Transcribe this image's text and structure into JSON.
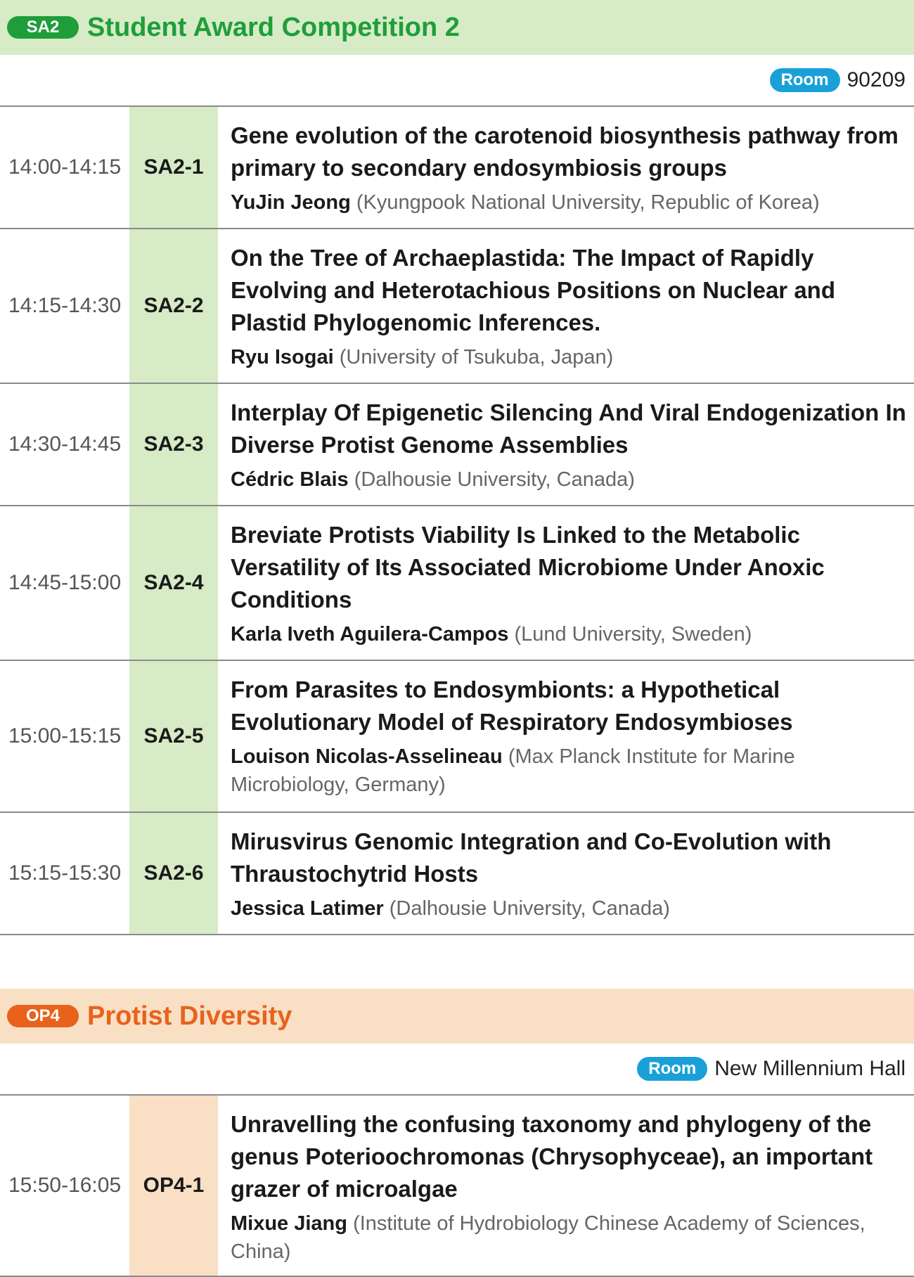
{
  "sessions": [
    {
      "badge": "SA2",
      "title": "Student Award Competition 2",
      "room_label": "Room",
      "room": "90209",
      "talks": [
        {
          "time": "14:00-14:15",
          "code": "SA2-1",
          "title": "Gene evolution of the carotenoid biosynthesis pathway from primary to secondary endosymbiosis groups",
          "author": "YuJin Jeong",
          "affiliation": "(Kyungpook National University, Republic of Korea)"
        },
        {
          "time": "14:15-14:30",
          "code": "SA2-2",
          "title": "On the Tree of Archaeplastida: The Impact of Rapidly Evolving and Heterotachious Positions on Nuclear and Plastid Phylogenomic Inferences.",
          "author": "Ryu Isogai",
          "affiliation": "(University of Tsukuba, Japan)"
        },
        {
          "time": "14:30-14:45",
          "code": "SA2-3",
          "title": "Interplay Of Epigenetic Silencing And Viral Endogenization In Diverse Protist Genome Assemblies",
          "author": "Cédric Blais",
          "affiliation": "(Dalhousie University, Canada)"
        },
        {
          "time": "14:45-15:00",
          "code": "SA2-4",
          "title": "Breviate Protists Viability Is Linked to the Metabolic Versatility of Its Associated Microbiome Under Anoxic Conditions",
          "author": "Karla Iveth Aguilera-Campos",
          "affiliation": "(Lund University, Sweden)"
        },
        {
          "time": "15:00-15:15",
          "code": "SA2-5",
          "title": "From Parasites to Endosymbionts: a Hypothetical Evolutionary Model of Respiratory Endosymbioses",
          "author": "Louison Nicolas-Asselineau",
          "affiliation": "(Max Planck Institute for Marine Microbiology, Germany)"
        },
        {
          "time": "15:15-15:30",
          "code": "SA2-6",
          "title": "Mirusvirus Genomic Integration and Co-Evolution with Thraustochytrid Hosts",
          "author": "Jessica Latimer",
          "affiliation": "(Dalhousie University, Canada)"
        }
      ]
    },
    {
      "badge": "OP4",
      "title": "Protist Diversity",
      "room_label": "Room",
      "room": "New Millennium Hall",
      "talks": [
        {
          "time": "15:50-16:05",
          "code": "OP4-1",
          "title": "Unravelling the confusing taxonomy and phylogeny of the genus Poterioochromonas (Chrysophyceae), an important grazer of microalgae",
          "author": "Mixue Jiang",
          "affiliation": "(Institute of Hydrobiology Chinese Academy of Sciences, China)"
        }
      ]
    }
  ]
}
